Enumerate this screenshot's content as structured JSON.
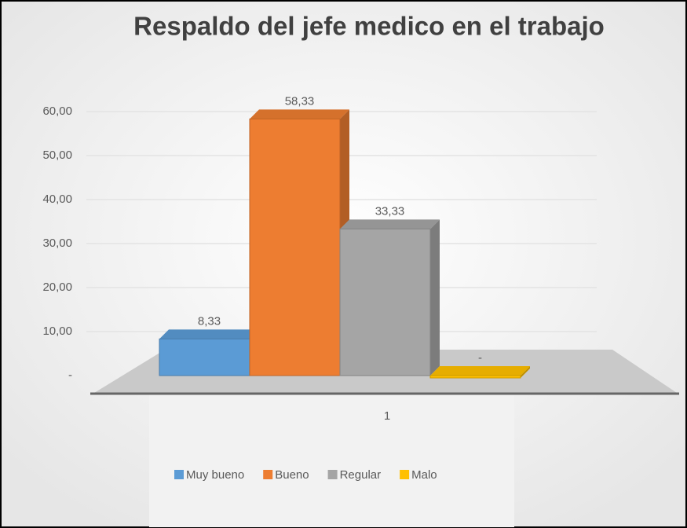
{
  "chart_data": {
    "type": "bar3d",
    "title": "Respaldo del jefe medico en el trabajo",
    "categories": [
      "1"
    ],
    "series": [
      {
        "name": "Muy bueno",
        "color": "#5b9bd5",
        "values": [
          8.33
        ],
        "value_labels": [
          "8,33"
        ]
      },
      {
        "name": "Bueno",
        "color": "#ed7d31",
        "values": [
          58.33
        ],
        "value_labels": [
          "58,33"
        ]
      },
      {
        "name": "Regular",
        "color": "#a5a5a5",
        "values": [
          33.33
        ],
        "value_labels": [
          "33,33"
        ]
      },
      {
        "name": "Malo",
        "color": "#ffc000",
        "values": [
          0
        ],
        "value_labels": [
          "-"
        ]
      }
    ],
    "ylim": [
      0,
      60
    ],
    "yticks": [
      {
        "value": 0,
        "label": "-"
      },
      {
        "value": 10,
        "label": "10,00"
      },
      {
        "value": 20,
        "label": "20,00"
      },
      {
        "value": 30,
        "label": "30,00"
      },
      {
        "value": 40,
        "label": "40,00"
      },
      {
        "value": 50,
        "label": "50,00"
      },
      {
        "value": 60,
        "label": "60,00"
      }
    ],
    "grid": true,
    "legend": "bottom"
  }
}
